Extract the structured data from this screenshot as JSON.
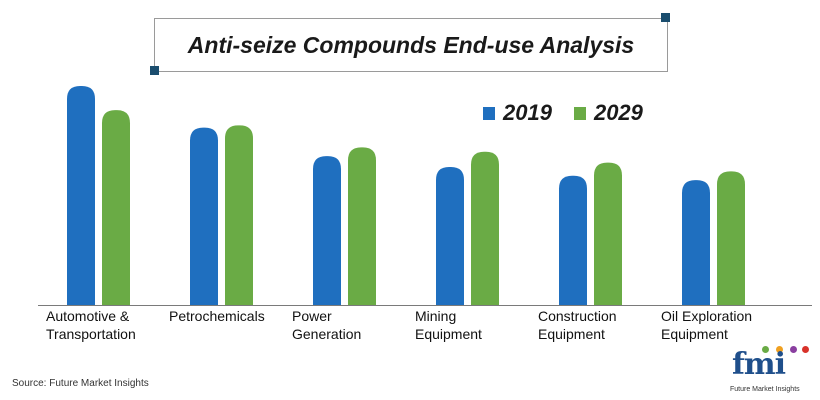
{
  "colors": {
    "series_2019": "#1f6fbf",
    "series_2029": "#6aab45",
    "accent_square": "#1a4d6e",
    "axis": "#7a7a7a"
  },
  "source_text": "Source: Future Market Insights",
  "logo": {
    "letters": "fmi",
    "tagline": "Future Market Insights"
  },
  "chart_data": {
    "type": "bar",
    "title": "Anti-seize Compounds End-use Analysis",
    "categories": [
      [
        "Automotive &",
        "Transportation"
      ],
      [
        "Petrochemicals"
      ],
      [
        "Power",
        "Generation"
      ],
      [
        "Mining",
        "Equipment"
      ],
      [
        "Construction",
        "Equipment"
      ],
      [
        "Oil Exploration",
        "Equipment"
      ]
    ],
    "series": [
      {
        "name": "2019",
        "values": [
          100,
          81,
          68,
          63,
          59,
          57
        ]
      },
      {
        "name": "2029",
        "values": [
          89,
          82,
          72,
          70,
          65,
          61
        ]
      }
    ],
    "ylim": [
      0,
      100
    ],
    "xlabel": "",
    "ylabel": "",
    "grid": false,
    "legend_position": "top-right"
  }
}
